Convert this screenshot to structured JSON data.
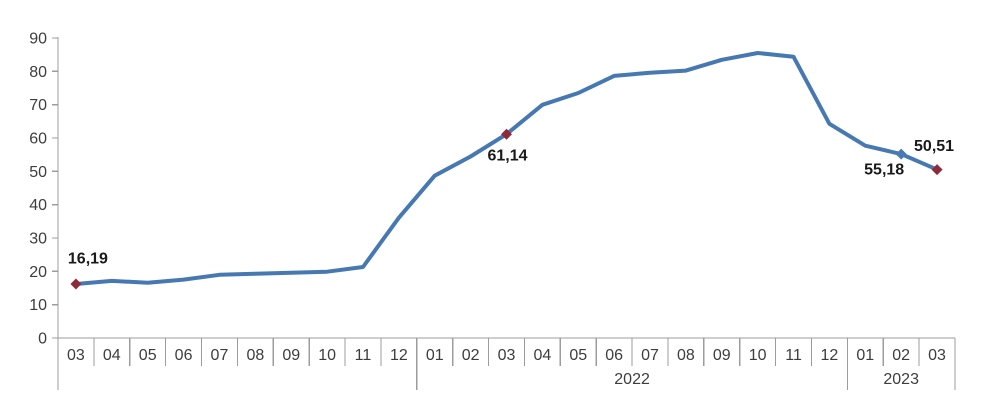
{
  "chart_data": {
    "type": "line",
    "title": "",
    "xlabel": "",
    "ylabel": "",
    "ylim": [
      0,
      90
    ],
    "ytick_labels": [
      "0",
      "10",
      "20",
      "30",
      "40",
      "50",
      "60",
      "70",
      "80",
      "90"
    ],
    "grid": false,
    "legend": "none",
    "x_groups": [
      {
        "year_label": "",
        "months": [
          "03",
          "04",
          "05",
          "06",
          "07",
          "08",
          "09",
          "10",
          "11",
          "12"
        ]
      },
      {
        "year_label": "2022",
        "months": [
          "01",
          "02",
          "03",
          "04",
          "05",
          "06",
          "07",
          "08",
          "09",
          "10",
          "11",
          "12"
        ]
      },
      {
        "year_label": "2023",
        "months": [
          "01",
          "02",
          "03"
        ]
      }
    ],
    "series": [
      {
        "values": [
          16.19,
          17.14,
          16.59,
          17.53,
          18.95,
          19.25,
          19.58,
          19.89,
          21.31,
          36.08,
          48.69,
          54.44,
          61.14,
          69.97,
          73.5,
          78.62,
          79.6,
          80.21,
          83.45,
          85.51,
          84.39,
          64.27,
          57.68,
          55.18,
          50.51
        ]
      }
    ],
    "point_labels": [
      {
        "index": 0,
        "text": "16,19",
        "position": "above-right",
        "marker": "red-diamond"
      },
      {
        "index": 12,
        "text": "61,14",
        "position": "below",
        "marker": "red-diamond"
      },
      {
        "index": 23,
        "text": "55,18",
        "position": "below-left",
        "marker": "blue-diamond"
      },
      {
        "index": 24,
        "text": "50,51",
        "position": "above",
        "marker": "red-diamond"
      }
    ],
    "colors": {
      "line": "#4678b2",
      "marker_red": "#8e2b3a",
      "marker_blue": "#4a7ab5",
      "axis_line": "#9c9c9c",
      "tick_text": "#3d3d3d",
      "data_label_text": "#1a1a1a",
      "background": "#ffffff"
    }
  }
}
